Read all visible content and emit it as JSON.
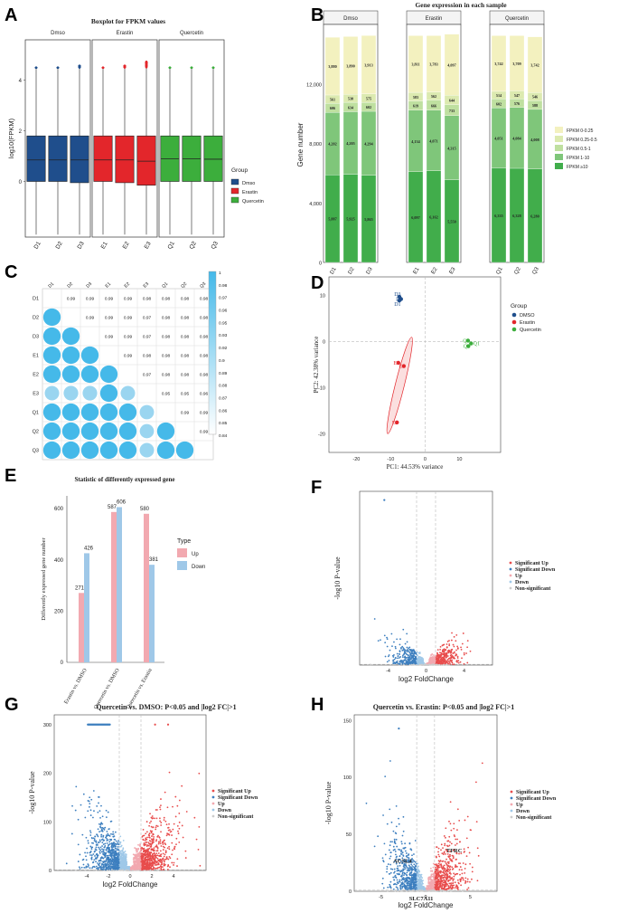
{
  "colors": {
    "dmso": "#1f4e8c",
    "erastin": "#e3262b",
    "quercetin": "#3cae3c",
    "sig_up": "#e84c4c",
    "sig_down": "#3d7fbf",
    "up": "#f2a9b0",
    "down": "#9fc8e8",
    "ns": "#cccccc",
    "corr": "#45b9e9",
    "fpkm": [
      "#f3f1bf",
      "#dceab0",
      "#bfe0a0",
      "#7fc67a",
      "#41ad4b"
    ]
  },
  "panels": {
    "A": "A",
    "B": "B",
    "C": "C",
    "D": "D",
    "E": "E",
    "F": "F",
    "G": "G",
    "H": "H"
  },
  "chart_data": [
    {
      "id": "A",
      "type": "box",
      "title": "Boxplot for FPKM values",
      "ylabel": "log10(FPKM)",
      "ylim": [
        -2.2,
        5.6
      ],
      "yticks": [
        "4",
        "2",
        "0"
      ],
      "facets": [
        "Dmso",
        "Erastin",
        "Quercetin"
      ],
      "categories": [
        "D1",
        "D2",
        "D3",
        "E1",
        "E2",
        "E3",
        "Q1",
        "Q2",
        "Q3"
      ],
      "boxes": [
        {
          "q1": 0,
          "med": 0.85,
          "q3": 1.8
        },
        {
          "q1": 0,
          "med": 0.85,
          "q3": 1.8
        },
        {
          "q1": -0.05,
          "med": 0.85,
          "q3": 1.8
        },
        {
          "q1": 0,
          "med": 0.85,
          "q3": 1.8
        },
        {
          "q1": -0.05,
          "med": 0.85,
          "q3": 1.8
        },
        {
          "q1": -0.15,
          "med": 0.8,
          "q3": 1.8
        },
        {
          "q1": 0,
          "med": 0.9,
          "q3": 1.8
        },
        {
          "q1": 0,
          "med": 0.9,
          "q3": 1.8
        },
        {
          "q1": 0,
          "med": 0.88,
          "q3": 1.8
        }
      ],
      "legend_title": "Group",
      "legend": [
        "Dmso",
        "Erastin",
        "Quercetin"
      ]
    },
    {
      "id": "B",
      "type": "stacked-bar",
      "title": "Gene expression in each sample",
      "ylabel": "Gene number",
      "ylim": [
        0,
        16000
      ],
      "yticks": [
        "0",
        "4,000",
        "8,000",
        "12,000"
      ],
      "facets": [
        "Dmso",
        "Erastin",
        "Quercetin"
      ],
      "categories": [
        "D1",
        "D2",
        "D3",
        "E1",
        "E2",
        "E3",
        "Q1",
        "Q2",
        "Q3"
      ],
      "series": [
        {
          "name": "FPKM ≥10",
          "values": [
            5887,
            5925,
            5865,
            6097,
            6162,
            5550,
            6335,
            6328,
            6280
          ],
          "labels": [
            "5,887",
            "5,925",
            "5,865",
            "6,097",
            "6,162",
            "5,550",
            "6,335",
            "6,328",
            "6,280"
          ]
        },
        {
          "name": "FPKM 1-10",
          "values": [
            4202,
            4205,
            4294,
            4134,
            4071,
            4315,
            4051,
            4084,
            4008
          ],
          "labels": [
            "4,202",
            "4,205",
            "4,294",
            "4,134",
            "4,071",
            "4,315",
            "4,051",
            "4,084",
            "4,008"
          ]
        },
        {
          "name": "FPKM 0.5-1",
          "values": [
            606,
            634,
            602,
            619,
            666,
            733,
            602,
            576,
            588
          ],
          "labels": [
            "606",
            "634",
            "602",
            "619",
            "666",
            "733",
            "602",
            "576",
            "588"
          ]
        },
        {
          "name": "FPKM 0.25-0.5",
          "values": [
            561,
            530,
            575,
            583,
            562,
            644,
            514,
            547,
            546
          ],
          "labels": [
            "561",
            "530",
            "575",
            "583",
            "562",
            "644",
            "514",
            "547",
            "546"
          ]
        },
        {
          "name": "FPKM 0-0.25",
          "values": [
            3880,
            3890,
            3913,
            3811,
            3783,
            4097,
            3742,
            3709,
            3742
          ],
          "labels": [
            "3,880",
            "3,890",
            "3,913",
            "3,811",
            "3,783",
            "4,097",
            "3,742",
            "3,709",
            "3,742"
          ]
        }
      ],
      "legend": [
        "FPKM 0-0.25",
        "FPKM 0.25-0.5",
        "FPKM 0.5-1",
        "FPKM 1-10",
        "FPKM ≥10"
      ]
    },
    {
      "id": "C",
      "type": "correlation",
      "labels": [
        "D1",
        "D2",
        "D3",
        "E1",
        "E2",
        "E3",
        "Q1",
        "Q2",
        "Q3"
      ],
      "upper": [
        [
          null,
          "0.99",
          "0.99",
          "0.99",
          "0.99",
          "0.98",
          "0.98",
          "0.98",
          "0.98"
        ],
        [
          null,
          null,
          "0.99",
          "0.99",
          "0.99",
          "0.97",
          "0.98",
          "0.98",
          "0.98"
        ],
        [
          null,
          null,
          null,
          "0.99",
          "0.99",
          "0.97",
          "0.98",
          "0.98",
          "0.98"
        ],
        [
          null,
          null,
          null,
          null,
          "0.99",
          "0.98",
          "0.98",
          "0.98",
          "0.98"
        ],
        [
          null,
          null,
          null,
          null,
          null,
          "0.97",
          "0.98",
          "0.98",
          "0.98"
        ],
        [
          null,
          null,
          null,
          null,
          null,
          null,
          "0.95",
          "0.95",
          "0.96"
        ],
        [
          null,
          null,
          null,
          null,
          null,
          null,
          null,
          "0.99",
          "0.99"
        ],
        [
          null,
          null,
          null,
          null,
          null,
          null,
          null,
          null,
          "0.99"
        ]
      ],
      "scale": [
        "1",
        "0.98",
        "0.97",
        "0.96",
        "0.95",
        "0.93",
        "0.92",
        "0.9",
        "0.89",
        "0.88",
        "0.87",
        "0.86",
        "0.85",
        "0.84"
      ]
    },
    {
      "id": "D",
      "type": "scatter",
      "xlabel": "PC1: 44.53% variance",
      "ylabel": "PC2: 42.38% variance",
      "xlim": [
        -28,
        22
      ],
      "ylim": [
        -24,
        14
      ],
      "xticks": [
        "-20",
        "-10",
        "0",
        "10"
      ],
      "yticks": [
        "10",
        "0",
        "-10",
        "-20"
      ],
      "legend_title": "Group",
      "legend": [
        "DMSO",
        "Erastin",
        "Quercetin"
      ],
      "points": [
        {
          "label": "D3",
          "x": -7.5,
          "y": 9.7,
          "g": 0
        },
        {
          "label": "D2",
          "x": -7.0,
          "y": 9.2,
          "g": 0
        },
        {
          "label": "D1",
          "x": -7.5,
          "y": 8.9,
          "g": 0
        },
        {
          "label": "E3",
          "x": -7.8,
          "y": -4.6,
          "g": 1
        },
        {
          "label": "E1",
          "x": -6.2,
          "y": -5.3,
          "g": 1
        },
        {
          "label": "E2",
          "x": -8.2,
          "y": -17.5,
          "g": 1
        },
        {
          "label": "Q3",
          "x": 12.5,
          "y": 0.2,
          "g": 2
        },
        {
          "label": "Q1",
          "x": 13.4,
          "y": -0.4,
          "g": 2
        },
        {
          "label": "Q2",
          "x": 12.6,
          "y": -1.0,
          "g": 2
        }
      ]
    },
    {
      "id": "E",
      "type": "bar",
      "title": "Statistic of differently expressed gene",
      "ylabel": "Differently expressed gene number",
      "ylim": [
        0,
        650
      ],
      "yticks": [
        "0",
        "200",
        "400",
        "600"
      ],
      "categories": [
        "Erastin vs. DMSO",
        "Quercetin vs. DMSO",
        "Quercetin vs. Erastin"
      ],
      "series": [
        {
          "name": "Up",
          "values": [
            271,
            587,
            580
          ]
        },
        {
          "name": "Down",
          "values": [
            426,
            606,
            381
          ]
        }
      ],
      "legend_title": "Type",
      "legend": [
        "Up",
        "Down"
      ]
    },
    {
      "id": "F",
      "type": "volcano",
      "title": "",
      "xlabel": "log2 FoldChange",
      "ylabel": "-log10 P-value",
      "xticks": [
        "-4",
        "0",
        "4"
      ],
      "yticks": [],
      "ymax": 300
    },
    {
      "id": "G",
      "type": "volcano",
      "title": "Quercetin vs. DMSO: P<0.05 and |log2 FC|>1",
      "xlabel": "log2 FoldChange",
      "ylabel": "-log10 P-value",
      "xticks": [
        "-4",
        "-2",
        "0",
        "2",
        "4"
      ],
      "yticks": [
        "0",
        "100",
        "200",
        "300"
      ],
      "ymax": 320
    },
    {
      "id": "H",
      "type": "volcano",
      "title": "Quercetin vs. Erastin: P<0.05 and |log2 FC|>1",
      "xlabel": "log2 FoldChange",
      "ylabel": "-log10 P-value",
      "xticks": [
        "-5",
        "0",
        "5"
      ],
      "yticks": [
        "0",
        "50",
        "100",
        "150"
      ],
      "ymax": 155,
      "annotations": [
        "ACSL4",
        "TFRC",
        "SLC7A11"
      ]
    }
  ],
  "volcano_legend": [
    "Significant Up",
    "Significant Down",
    "Up",
    "Down",
    "Non-significant"
  ]
}
